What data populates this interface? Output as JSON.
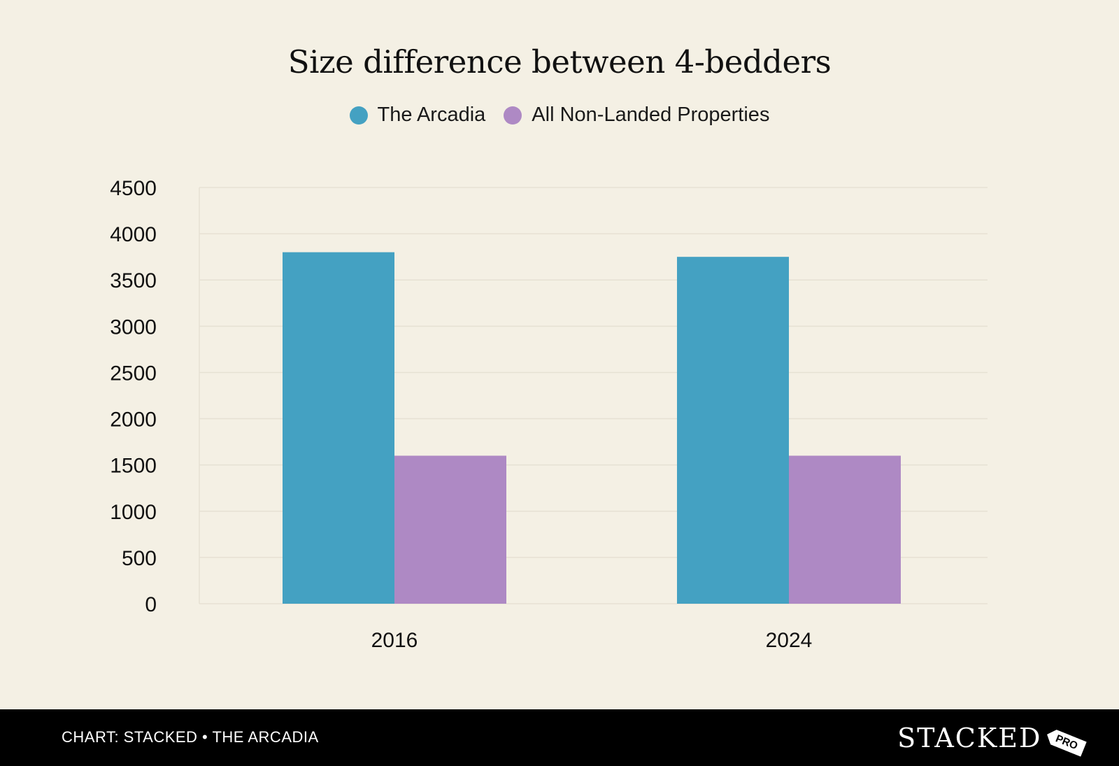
{
  "chart_data": {
    "type": "bar",
    "title": "Size difference between 4-bedders",
    "categories": [
      "2016",
      "2024"
    ],
    "series": [
      {
        "name": "The Arcadia",
        "values": [
          3800,
          3750
        ],
        "color": "#44a1c2"
      },
      {
        "name": "All Non-Landed Properties",
        "values": [
          1600,
          1600
        ],
        "color": "#ae89c4"
      }
    ],
    "y_ticks": [
      0,
      500,
      1000,
      1500,
      2000,
      2500,
      3000,
      3500,
      4000,
      4500
    ],
    "ylim": [
      0,
      4500
    ],
    "xlabel": "",
    "ylabel": "",
    "grid": true,
    "legend_position": "top-center"
  },
  "footer": {
    "credit": "CHART: STACKED • THE ARCADIA",
    "logo_text": "STACKED",
    "logo_badge": "PRO"
  },
  "colors": {
    "background": "#f4f0e4",
    "grid": "#e6e1d3",
    "footer_bg": "#000000"
  }
}
